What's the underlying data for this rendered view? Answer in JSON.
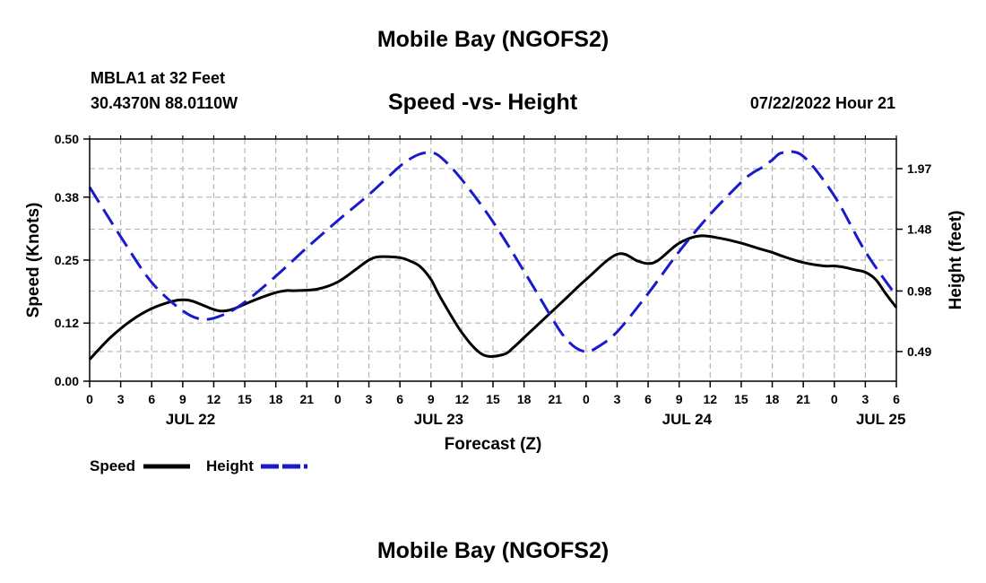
{
  "header": {
    "title": "Mobile Bay (NGOFS2)",
    "station": "MBLA1 at 32 Feet",
    "coords": "30.4370N  88.0110W",
    "subtitle": "Speed -vs- Height",
    "datetime": "07/22/2022 Hour 21"
  },
  "footer": {
    "title": "Mobile Bay (NGOFS2)"
  },
  "colors": {
    "speed": "#000000",
    "height": "#1a1acc",
    "grid": "#b4b4b4"
  },
  "chart_data": {
    "type": "line",
    "title": "Speed -vs- Height",
    "xlabel": "Forecast (Z)",
    "ylabel": "Speed (Knots)",
    "y2label": "Height (feet)",
    "xlim": [
      0,
      78
    ],
    "ylim": [
      0,
      0.5
    ],
    "y2lim": [
      0.25,
      2.21
    ],
    "x_ticks": [
      0,
      3,
      6,
      9,
      12,
      15,
      18,
      21,
      24,
      27,
      30,
      33,
      36,
      39,
      42,
      45,
      48,
      51,
      54,
      57,
      60,
      63,
      66,
      69,
      72,
      75,
      78
    ],
    "x_tick_labels": [
      "0",
      "3",
      "6",
      "9",
      "12",
      "15",
      "18",
      "21",
      "0",
      "3",
      "6",
      "9",
      "12",
      "15",
      "18",
      "21",
      "0",
      "3",
      "6",
      "9",
      "12",
      "15",
      "18",
      "21",
      "0",
      "3",
      "6"
    ],
    "date_labels": [
      {
        "x": 9.75,
        "label": "JUL 22"
      },
      {
        "x": 33.75,
        "label": "JUL 23"
      },
      {
        "x": 57.75,
        "label": "JUL 24"
      },
      {
        "x": 76.5,
        "label": "JUL 25"
      }
    ],
    "y_ticks": [
      0,
      0.12,
      0.25,
      0.38,
      0.5
    ],
    "y_tick_labels": [
      "0.00",
      "0.12",
      "0.25",
      "0.38",
      "0.50"
    ],
    "y2_ticks": [
      0.49,
      0.98,
      1.48,
      1.97
    ],
    "y2_tick_labels": [
      "0.49",
      "0.98",
      "1.48",
      "1.97"
    ],
    "grid": true,
    "legend": {
      "position": "bottom-left",
      "entries": [
        "Speed",
        "Height"
      ]
    },
    "series": [
      {
        "name": "Speed",
        "axis": "left",
        "style": "solid",
        "x": [
          0,
          2,
          4,
          6,
          8,
          9,
          10,
          12,
          13,
          14,
          16,
          18,
          19,
          20,
          22,
          24,
          26,
          27,
          28,
          30,
          31,
          32,
          33,
          34,
          36,
          38,
          40,
          41,
          42,
          43,
          44,
          46,
          48,
          51,
          53,
          54,
          55,
          57,
          59,
          61,
          63,
          65,
          66,
          67,
          69,
          71,
          72,
          73,
          74,
          75,
          76,
          77,
          78
        ],
        "y": [
          0.045,
          0.09,
          0.125,
          0.15,
          0.165,
          0.168,
          0.165,
          0.148,
          0.145,
          0.15,
          0.168,
          0.183,
          0.187,
          0.187,
          0.19,
          0.205,
          0.235,
          0.25,
          0.257,
          0.255,
          0.248,
          0.236,
          0.21,
          0.17,
          0.1,
          0.055,
          0.055,
          0.07,
          0.09,
          0.11,
          0.13,
          0.17,
          0.21,
          0.262,
          0.248,
          0.243,
          0.25,
          0.285,
          0.3,
          0.295,
          0.285,
          0.272,
          0.266,
          0.258,
          0.245,
          0.238,
          0.238,
          0.235,
          0.23,
          0.225,
          0.21,
          0.18,
          0.152
        ]
      },
      {
        "name": "Height",
        "axis": "right",
        "style": "dashed",
        "x": [
          0,
          3,
          6,
          9,
          11,
          13,
          15,
          18,
          21,
          24,
          27,
          30,
          31,
          32,
          33,
          34,
          36,
          39,
          42,
          45,
          46,
          47,
          48,
          49,
          51,
          54,
          57,
          60,
          63,
          64,
          65,
          66,
          67,
          69,
          72,
          75,
          78
        ],
        "y": [
          1.82,
          1.42,
          1.05,
          0.82,
          0.75,
          0.79,
          0.89,
          1.1,
          1.33,
          1.55,
          1.76,
          1.99,
          2.05,
          2.09,
          2.1,
          2.06,
          1.88,
          1.54,
          1.14,
          0.72,
          0.6,
          0.52,
          0.49,
          0.52,
          0.65,
          0.96,
          1.3,
          1.6,
          1.86,
          1.93,
          1.98,
          2.04,
          2.1,
          2.07,
          1.75,
          1.3,
          0.94
        ]
      }
    ]
  }
}
